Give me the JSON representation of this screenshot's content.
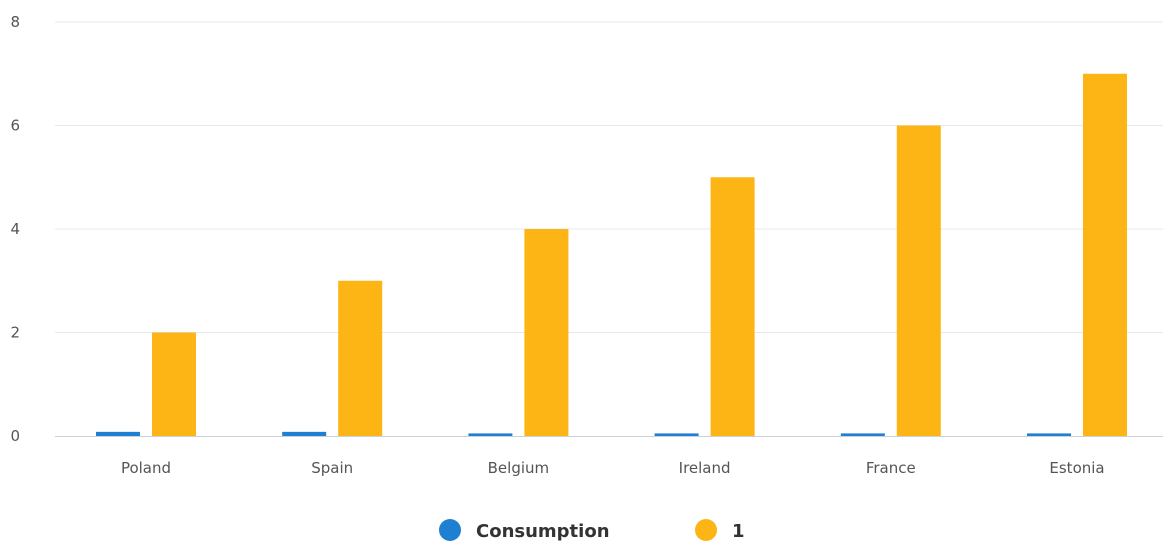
{
  "chart_data": {
    "type": "bar",
    "categories": [
      "Poland",
      "Spain",
      "Belgium",
      "Ireland",
      "France",
      "Estonia"
    ],
    "series": [
      {
        "name": "Consumption",
        "color": "#1f7fd0",
        "values": [
          0.08,
          0.08,
          0.05,
          0.05,
          0.05,
          0.05
        ]
      },
      {
        "name": "1",
        "color": "#fdb515",
        "values": [
          2,
          3,
          4,
          5,
          6,
          7
        ]
      }
    ],
    "ylim": [
      0,
      8
    ],
    "yticks": [
      0,
      2,
      4,
      6,
      8
    ],
    "grid": true,
    "legend_position": "bottom-center",
    "title": "",
    "xlabel": "",
    "ylabel": ""
  }
}
